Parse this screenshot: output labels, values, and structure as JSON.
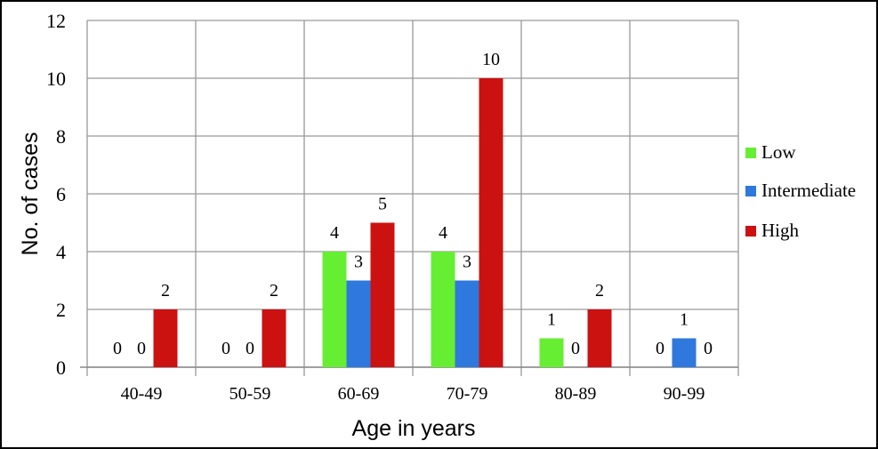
{
  "chart_data": {
    "type": "bar",
    "xlabel": "Age in years",
    "ylabel": "No. of cases",
    "ylim": [
      0,
      12
    ],
    "yticks": [
      0,
      2,
      4,
      6,
      8,
      10,
      12
    ],
    "grid": true,
    "legend_position": "right",
    "categories": [
      "40-49",
      "50-59",
      "60-69",
      "70-79",
      "80-89",
      "90-99"
    ],
    "series": [
      {
        "name": "Low",
        "color": "#66ee33",
        "values": [
          0,
          0,
          4,
          4,
          1,
          0
        ]
      },
      {
        "name": "Intermediate",
        "color": "#2f78dd",
        "values": [
          0,
          0,
          3,
          3,
          0,
          1
        ]
      },
      {
        "name": "High",
        "color": "#cc1111",
        "values": [
          2,
          2,
          5,
          10,
          2,
          0
        ]
      }
    ]
  }
}
